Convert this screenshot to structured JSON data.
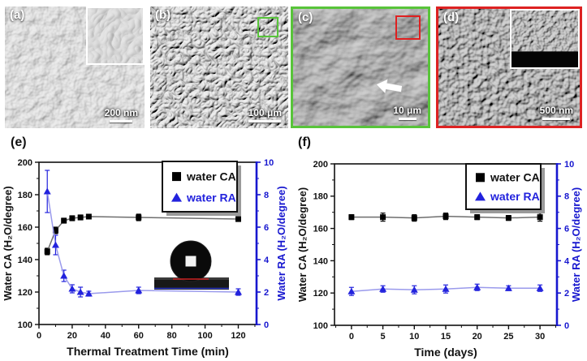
{
  "colors": {
    "accent_blue": "#1717cf",
    "green_highlight": "#58c43a",
    "red_highlight": "#dd2222",
    "ca_marker": "#000000",
    "ca_line": "#6e6e6e",
    "ra_marker": "#2222dd",
    "ra_line": "#9a9aec"
  },
  "panels": {
    "a": {
      "label": "(a)",
      "scale_bar": "200 nm"
    },
    "b": {
      "label": "(b)",
      "scale_bar": "100 μm",
      "box_color": "#58c43a"
    },
    "c": {
      "label": "(c)",
      "scale_bar": "10 μm",
      "border_color": "#58c43a",
      "box_color": "#e02020"
    },
    "d": {
      "label": "(d)",
      "scale_bar": "500 nm",
      "border_color": "#dd2222"
    }
  },
  "chart_data": [
    {
      "id": "e",
      "panel_label": "(e)",
      "type": "line",
      "title": "",
      "xlabel": "Thermal Treatment Time (min)",
      "ylabel_left": "Water CA (H₂O/degree)",
      "ylabel_right": "Water RA (H₂O/degree)",
      "xlim": [
        0,
        131
      ],
      "xticks": [
        0,
        20,
        40,
        60,
        80,
        100,
        120
      ],
      "xminor_step": 10,
      "ylim_left": [
        100,
        200
      ],
      "yticks_left": [
        100,
        120,
        140,
        160,
        180,
        200
      ],
      "yminor_step_left": 10,
      "ylim_right": [
        0,
        10
      ],
      "yticks_right": [
        0,
        2,
        4,
        6,
        8,
        10
      ],
      "yminor_step_right": 1,
      "grid": false,
      "x": [
        5,
        10,
        15,
        20,
        25,
        30,
        60,
        120
      ],
      "series": [
        {
          "name": "water CA",
          "axis": "left",
          "marker": "square",
          "values": [
            145,
            158,
            164,
            165.5,
            166,
            166.5,
            166,
            165
          ],
          "errors": [
            2,
            2,
            1.5,
            1.5,
            1.5,
            1,
            2,
            1.5
          ]
        },
        {
          "name": "water RA",
          "axis": "right",
          "marker": "triangle",
          "values": [
            8.2,
            4.9,
            3.0,
            2.2,
            2.0,
            1.9,
            2.1,
            2.0
          ],
          "errors": [
            1.3,
            0.6,
            0.35,
            0.25,
            0.3,
            0.15,
            0.2,
            0.2
          ]
        }
      ],
      "legend": {
        "position": "top-right",
        "items": [
          "water CA",
          "water RA"
        ]
      },
      "has_droplet_inset": true
    },
    {
      "id": "f",
      "panel_label": "(f)",
      "type": "line",
      "title": "",
      "xlabel": "Time (days)",
      "ylabel_left": "Water CA (H₂O/degree)",
      "ylabel_right": "Water RA (H₂O/degree)",
      "xlim": [
        -2.7,
        32.7
      ],
      "xticks": [
        0,
        5,
        10,
        15,
        20,
        25,
        30
      ],
      "xminor_step": 2.5,
      "ylim_left": [
        100,
        200
      ],
      "yticks_left": [
        100,
        120,
        140,
        160,
        180,
        200
      ],
      "yminor_step_left": 10,
      "ylim_right": [
        0,
        10
      ],
      "yticks_right": [
        0,
        2,
        4,
        6,
        8,
        10
      ],
      "yminor_step_right": 1,
      "grid": false,
      "x": [
        0,
        5,
        10,
        15,
        20,
        25,
        30
      ],
      "series": [
        {
          "name": "water CA",
          "axis": "left",
          "marker": "square",
          "values": [
            167,
            167,
            166.5,
            167.5,
            167,
            166.5,
            167
          ],
          "errors": [
            1.5,
            2.5,
            2,
            2,
            1.5,
            1.5,
            2.5
          ]
        },
        {
          "name": "water RA",
          "axis": "right",
          "marker": "triangle",
          "values": [
            2.1,
            2.25,
            2.2,
            2.25,
            2.35,
            2.3,
            2.3
          ],
          "errors": [
            0.25,
            0.2,
            0.25,
            0.25,
            0.2,
            0.15,
            0.2
          ]
        }
      ],
      "legend": {
        "position": "top-right",
        "items": [
          "water CA",
          "water RA"
        ]
      },
      "has_droplet_inset": false
    }
  ]
}
